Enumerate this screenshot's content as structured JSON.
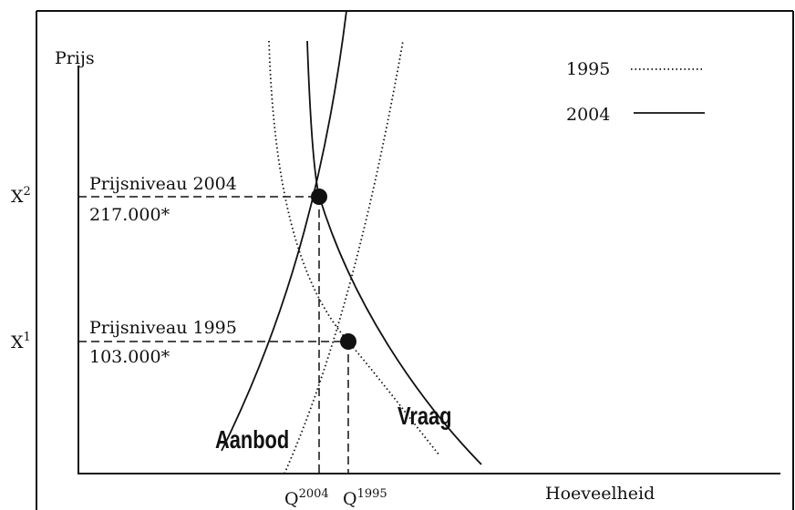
{
  "axes": {
    "y_title": "Prijs",
    "x_title": "Hoeveelheid",
    "y_levels": [
      {
        "base": "X",
        "sup": "2"
      },
      {
        "base": "X",
        "sup": "1"
      }
    ],
    "x_levels": [
      {
        "base": "Q",
        "sup": "2004"
      },
      {
        "base": "Q",
        "sup": "1995"
      }
    ]
  },
  "annotations": [
    {
      "label": "Prijsniveau 2004",
      "value": "217.000*"
    },
    {
      "label": "Prijsniveau 1995",
      "value": "103.000*"
    }
  ],
  "curves": {
    "supply": "Aanbod",
    "demand": "Vraag"
  },
  "legend": [
    "1995",
    "2004"
  ]
}
